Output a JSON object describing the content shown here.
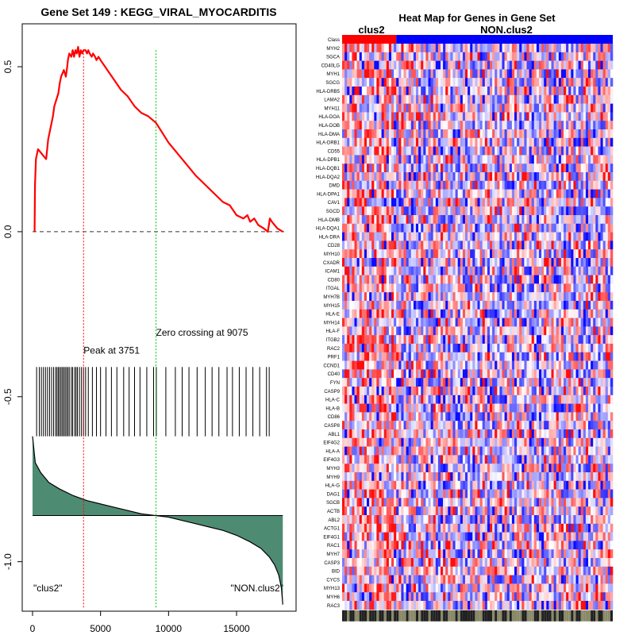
{
  "chart_data": [
    {
      "type": "line",
      "title": "Gene Set  149 : KEGG_VIRAL_MYOCARDITIS",
      "xlabel": "",
      "ylabel": "",
      "xlim": [
        0,
        18500
      ],
      "ylim": [
        -1.15,
        0.63
      ],
      "x_ticks": [
        0,
        5000,
        10000,
        15000
      ],
      "x_tick_labels": [
        "0",
        "5000",
        "10000",
        "15000"
      ],
      "y_ticks": [
        0.5,
        0.0,
        -0.5,
        -1.0
      ],
      "y_tick_labels": [
        "0.5",
        "0.0",
        "-0.5",
        "-1.0"
      ],
      "grid": false,
      "colors": {
        "running_es": "#ff0000",
        "peak_line": "#ff0000",
        "zero_crossing_line": "#00c000",
        "ranked_metric_fill": "#4d8c73"
      },
      "series": [
        {
          "x": [
            150,
            180,
            250,
            400,
            600,
            800,
            1000,
            1100,
            1150,
            1250,
            1400,
            1500,
            1600,
            1750,
            1900,
            2000,
            2100,
            2200,
            2300,
            2450,
            2550,
            2600,
            2700,
            2850,
            2950,
            3050,
            3150,
            3250,
            3350,
            3450,
            3550,
            3650,
            3751,
            3900,
            4000,
            4100,
            4200,
            4350,
            4450,
            4600,
            4700,
            4850,
            5000,
            5500,
            6000,
            6500,
            7000,
            7500,
            8000,
            8500,
            9075,
            10000,
            11000,
            12000,
            13000,
            14000,
            14500,
            15000,
            15500,
            15800,
            16000,
            16300,
            16600,
            17000,
            17300,
            17450,
            17600,
            18000,
            18400
          ],
          "y": [
            0.0,
            0.14,
            0.22,
            0.25,
            0.24,
            0.23,
            0.22,
            0.26,
            0.28,
            0.3,
            0.33,
            0.35,
            0.38,
            0.4,
            0.42,
            0.45,
            0.47,
            0.48,
            0.49,
            0.47,
            0.5,
            0.52,
            0.54,
            0.53,
            0.55,
            0.53,
            0.55,
            0.54,
            0.56,
            0.53,
            0.55,
            0.54,
            0.55,
            0.55,
            0.54,
            0.55,
            0.54,
            0.53,
            0.54,
            0.53,
            0.52,
            0.53,
            0.52,
            0.49,
            0.46,
            0.43,
            0.41,
            0.38,
            0.36,
            0.35,
            0.33,
            0.27,
            0.22,
            0.17,
            0.13,
            0.09,
            0.08,
            0.05,
            0.04,
            0.05,
            0.03,
            0.04,
            0.02,
            0.01,
            0.0,
            0.04,
            0.03,
            0.01,
            0.0
          ]
        }
      ],
      "zero_line": 0.0,
      "peak": {
        "x": 3751,
        "label": "Peak at 3751"
      },
      "zero_crossing": {
        "x": 9075,
        "label": "Zero crossing at 9075"
      },
      "hit_positions": [
        300,
        500,
        650,
        800,
        950,
        1100,
        1250,
        1400,
        1550,
        1700,
        1800,
        1900,
        2000,
        2100,
        2200,
        2300,
        2400,
        2500,
        2600,
        2700,
        2850,
        2950,
        3100,
        3200,
        3300,
        3450,
        3600,
        3750,
        3900,
        4100,
        4400,
        4700,
        5000,
        5400,
        5800,
        6200,
        6700,
        7100,
        7500,
        7900,
        8400,
        8900,
        9100,
        9800,
        10500,
        11000,
        11500,
        12100,
        12700,
        13200,
        13700,
        14300,
        14700,
        15200,
        15700,
        16200,
        16700,
        17200,
        17400
      ],
      "ranked_metric": {
        "x": [
          0,
          200,
          600,
          1200,
          2000,
          3000,
          4000,
          5000,
          6000,
          7000,
          8000,
          9000,
          10000,
          11000,
          12000,
          13000,
          14000,
          15000,
          16000,
          16800,
          17400,
          17800,
          18100,
          18300,
          18400
        ],
        "y": [
          -0.62,
          -0.7,
          -0.73,
          -0.76,
          -0.78,
          -0.8,
          -0.815,
          -0.825,
          -0.835,
          -0.845,
          -0.855,
          -0.86,
          -0.865,
          -0.875,
          -0.885,
          -0.895,
          -0.905,
          -0.92,
          -0.94,
          -0.96,
          -0.985,
          -1.01,
          -1.04,
          -1.08,
          -1.13
        ],
        "baseline": -0.86
      },
      "annotations": [
        "\"clus2\"",
        "\"NON.clus2\""
      ]
    },
    {
      "type": "heatmap",
      "title": "Heat Map for Genes in Gene Set",
      "column_groups": [
        {
          "label": "clus2",
          "color": "#ff0000",
          "fraction": 0.2
        },
        {
          "label": "NON.clus2",
          "color": "#0000ff",
          "fraction": 0.8
        }
      ],
      "class_row_label": "Class",
      "rows": [
        "MYH2",
        "SGCA",
        "CD40LG",
        "MYH1",
        "SGCG",
        "HLA-DRB5",
        "LAMA2",
        "MYH11",
        "HLA-DOA",
        "HLA-DOB",
        "HLA-DMA",
        "HLA-DRB1",
        "CD55",
        "HLA-DPB1",
        "HLA-DQB1",
        "HLA-DQA2",
        "DMD",
        "HLA-DPA1",
        "CAV1",
        "SGCD",
        "HLA-DMB",
        "HLA-DQA1",
        "HLA-DRA",
        "CD28",
        "MYH10",
        "CXADR",
        "ICAM1",
        "CD80",
        "ITGAL",
        "MYH7B",
        "MYH15",
        "HLA-E",
        "MYH14",
        "HLA-F",
        "ITGB2",
        "RAC2",
        "PRF1",
        "CCND1",
        "CD40",
        "FYN",
        "CASP9",
        "HLA-C",
        "HLA-B",
        "CD86",
        "CASP8",
        "ABL1",
        "EIF4G2",
        "HLA-A",
        "EIF4G3",
        "MYH3",
        "MYH9",
        "HLA-G",
        "DAG1",
        "SGCB",
        "ACTB",
        "ABL2",
        "ACTG1",
        "EIF4G1",
        "RAC1",
        "MYH7",
        "CASP3",
        "BID",
        "CYCS",
        "MYH13",
        "MYH6",
        "RAC3"
      ],
      "colors": {
        "high": "#ff0000",
        "mid": "#ffffff",
        "low": "#0000ff"
      }
    }
  ]
}
